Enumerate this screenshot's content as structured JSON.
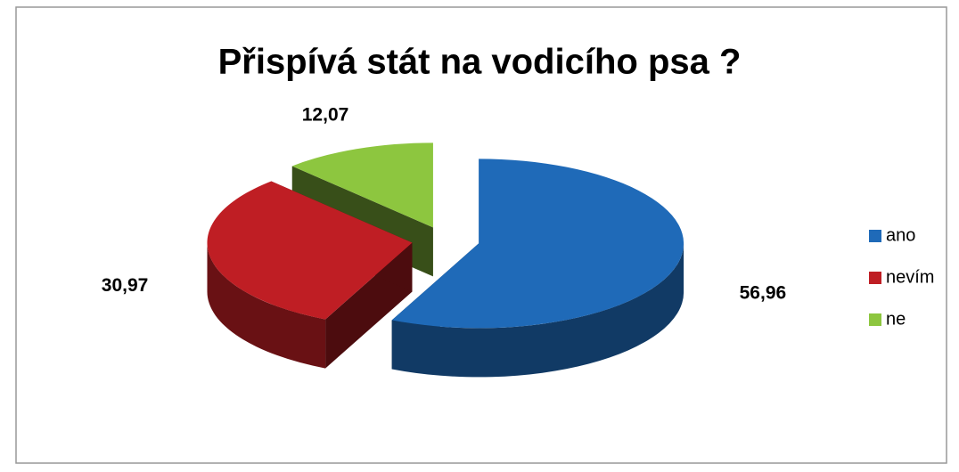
{
  "chart_data": {
    "type": "pie",
    "title": "Přispívá stát na vodicího psa ?",
    "categories": [
      "ano",
      "nevím",
      "ne"
    ],
    "values": [
      56.96,
      30.97,
      12.07
    ],
    "value_labels": [
      "56,96",
      "30,97",
      "12,07"
    ],
    "colors": [
      "#1f6ab8",
      "#bf1e24",
      "#8dc63f"
    ],
    "legend": "right"
  }
}
